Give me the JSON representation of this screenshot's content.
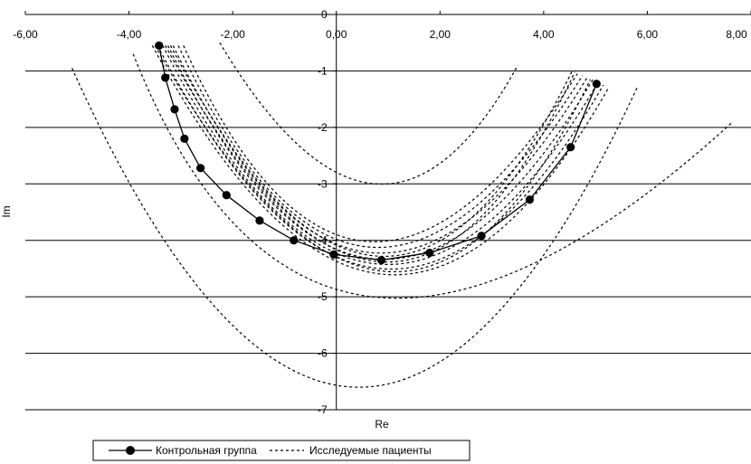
{
  "chart_data": {
    "type": "line",
    "xlabel": "Re",
    "ylabel": "Im",
    "xlim": [
      -6,
      8
    ],
    "ylim": [
      -7,
      0
    ],
    "x_ticks": [
      "-6,00",
      "-4,00",
      "-2,00",
      "0,00",
      "2,00",
      "4,00",
      "6,00",
      "8,00"
    ],
    "y_ticks": [
      "0",
      "-1",
      "-2",
      "-3",
      "-4",
      "-5",
      "-6",
      "-7"
    ],
    "grid": "horizontal",
    "legend_position": "bottom",
    "colors": {
      "series": "#000000",
      "grid": "#000000",
      "background": "#ffffff"
    },
    "legend": {
      "control": "Контрольная группа",
      "patients": "Исследуемые пациенты"
    },
    "series": [
      {
        "name": "Контрольная группа",
        "style": "solid-markers",
        "x": [
          -3.42,
          -3.3,
          -3.12,
          -2.93,
          -2.62,
          -2.12,
          -1.48,
          -0.82,
          -0.05,
          0.87,
          1.8,
          2.8,
          3.73,
          4.52,
          5.02
        ],
        "y": [
          -0.55,
          -1.12,
          -1.68,
          -2.2,
          -2.72,
          -3.2,
          -3.65,
          -4.0,
          -4.25,
          -4.35,
          -4.22,
          -3.92,
          -3.28,
          -2.35,
          -1.23
        ]
      },
      {
        "name": "Исследуемые пациенты",
        "style": "dotted",
        "x": [
          -5.1,
          0.35,
          5.8
        ],
        "y": [
          -0.95,
          -6.6,
          -1.3
        ]
      },
      {
        "name": "Исследуемые пациенты",
        "style": "dotted",
        "x": [
          -3.92,
          0.7,
          7.65
        ],
        "y": [
          -0.7,
          -5.0,
          -1.9
        ]
      },
      {
        "name": "Исследуемые пациенты",
        "style": "dotted",
        "x": [
          -2.25,
          0.75,
          3.5
        ],
        "y": [
          -0.5,
          -3.0,
          -0.9
        ]
      },
      {
        "name": "Исследуемые пациенты",
        "style": "dotted",
        "x": [
          -3.55,
          0.9,
          5.25
        ],
        "y": [
          -0.55,
          -4.6,
          -1.3
        ]
      },
      {
        "name": "Исследуемые пациенты",
        "style": "dotted",
        "x": [
          -3.45,
          0.85,
          5.15
        ],
        "y": [
          -0.55,
          -4.5,
          -1.25
        ]
      },
      {
        "name": "Исследуемые пациенты",
        "style": "dotted",
        "x": [
          -3.35,
          0.8,
          5.05
        ],
        "y": [
          -0.55,
          -4.42,
          -1.2
        ]
      },
      {
        "name": "Исследуемые пациенты",
        "style": "dotted",
        "x": [
          -3.25,
          0.75,
          4.95
        ],
        "y": [
          -0.55,
          -4.33,
          -1.15
        ]
      },
      {
        "name": "Исследуемые пациенты",
        "style": "dotted",
        "x": [
          -3.15,
          0.7,
          4.85
        ],
        "y": [
          -0.55,
          -4.22,
          -1.1
        ]
      },
      {
        "name": "Исследуемые пациенты",
        "style": "dotted",
        "x": [
          -3.05,
          0.65,
          4.75
        ],
        "y": [
          -0.55,
          -4.12,
          -1.08
        ]
      },
      {
        "name": "Исследуемые пациенты",
        "style": "dotted",
        "x": [
          -2.95,
          0.6,
          4.65
        ],
        "y": [
          -0.55,
          -4.02,
          -1.05
        ]
      },
      {
        "name": "Исследуемые пациенты",
        "style": "dotted",
        "x": [
          -3.3,
          0.85,
          4.6
        ],
        "y": [
          -0.55,
          -4.38,
          -1.02
        ]
      },
      {
        "name": "Исследуемые пациенты",
        "style": "dotted",
        "x": [
          -3.2,
          0.8,
          4.55
        ],
        "y": [
          -0.55,
          -4.28,
          -1.0
        ]
      },
      {
        "name": "Исследуемые пациенты",
        "style": "dotted",
        "x": [
          -3.5,
          0.95,
          4.9
        ],
        "y": [
          -0.55,
          -4.55,
          -1.15
        ]
      }
    ]
  }
}
